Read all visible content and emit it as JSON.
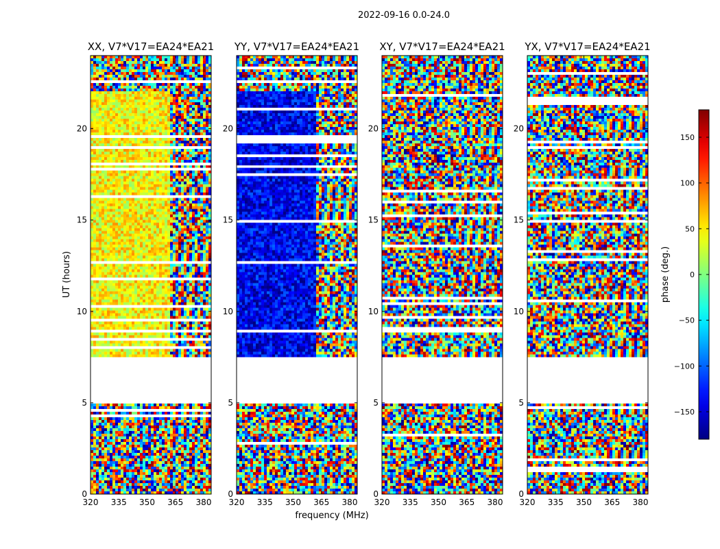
{
  "figure": {
    "suptitle": "2022-09-16 0.0-24.0",
    "xlabel": "frequency (MHz)",
    "ylabel": "UT (hours)",
    "colorbar_label": "phase (deg.)"
  },
  "chart_data": {
    "type": "heatmap",
    "colormap": "jet",
    "vmin": -180,
    "vmax": 180,
    "colorbar_ticks": [
      -150,
      -100,
      -50,
      0,
      50,
      100,
      150
    ],
    "xlim": [
      320,
      384
    ],
    "xticks": [
      320,
      335,
      350,
      365,
      380
    ],
    "ylim": [
      0,
      24
    ],
    "yticks": [
      0,
      5,
      10,
      15,
      20
    ],
    "gap_ut": [
      5.0,
      7.5
    ],
    "panels": [
      {
        "title": "XX, V7*V17=EA24*EA21",
        "low_band_phase": 45,
        "low_band_end_mhz": 361.5
      },
      {
        "title": "YY, V7*V17=EA24*EA21",
        "low_band_phase": -140,
        "low_band_end_mhz": 361.5
      },
      {
        "title": "XY, V7*V17=EA24*EA21",
        "low_band_phase": null,
        "low_band_end_mhz": null
      },
      {
        "title": "YX, V7*V17=EA24*EA21",
        "low_band_phase": null,
        "low_band_end_mhz": null
      }
    ]
  }
}
